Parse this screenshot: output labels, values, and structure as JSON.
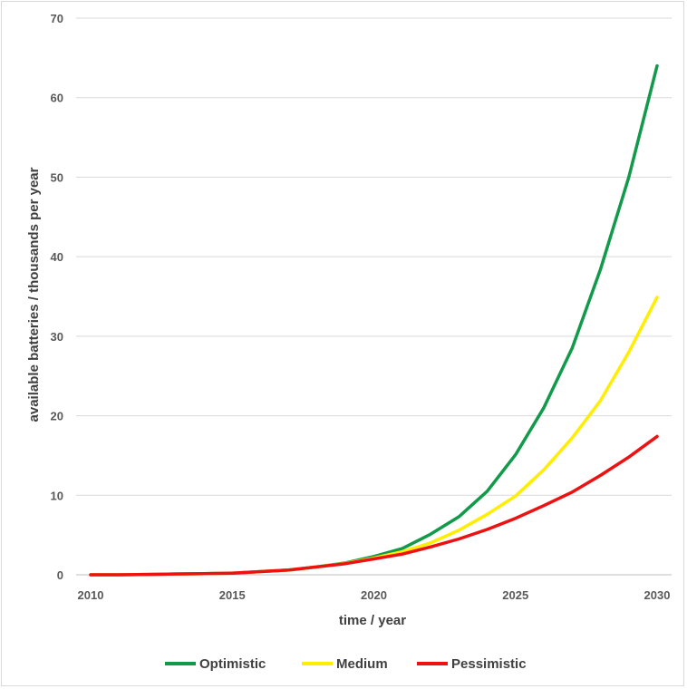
{
  "chart_data": {
    "type": "line",
    "title": "",
    "xlabel": "time / year",
    "ylabel": "available batteries / thousands per year",
    "xlim": [
      2010,
      2030
    ],
    "ylim": [
      0,
      70
    ],
    "x_ticks": [
      2010,
      2015,
      2020,
      2025,
      2030
    ],
    "y_ticks": [
      0,
      10,
      20,
      30,
      40,
      50,
      60,
      70
    ],
    "grid": "horizontal",
    "legend_position": "bottom",
    "x": [
      2010,
      2011,
      2012,
      2013,
      2014,
      2015,
      2016,
      2017,
      2018,
      2019,
      2020,
      2021,
      2022,
      2023,
      2024,
      2025,
      2026,
      2027,
      2028,
      2029,
      2030
    ],
    "series": [
      {
        "name": "Optimistic",
        "color": "#119a4a",
        "values": [
          0.0,
          0.0,
          0.05,
          0.1,
          0.15,
          0.2,
          0.4,
          0.6,
          1.0,
          1.5,
          2.3,
          3.3,
          5.1,
          7.3,
          10.5,
          15.1,
          21.0,
          28.5,
          38.4,
          50.0,
          64.0
        ]
      },
      {
        "name": "Medium",
        "color": "#ffee00",
        "values": [
          0.0,
          0.0,
          0.05,
          0.1,
          0.15,
          0.2,
          0.4,
          0.6,
          1.0,
          1.45,
          2.1,
          2.9,
          4.0,
          5.6,
          7.6,
          9.9,
          13.2,
          17.2,
          21.9,
          28.0,
          34.9
        ]
      },
      {
        "name": "Pessimistic",
        "color": "#ee1111",
        "values": [
          0.0,
          0.0,
          0.05,
          0.1,
          0.15,
          0.2,
          0.4,
          0.6,
          1.0,
          1.4,
          2.0,
          2.6,
          3.5,
          4.5,
          5.7,
          7.1,
          8.7,
          10.4,
          12.5,
          14.8,
          17.4
        ]
      }
    ]
  }
}
